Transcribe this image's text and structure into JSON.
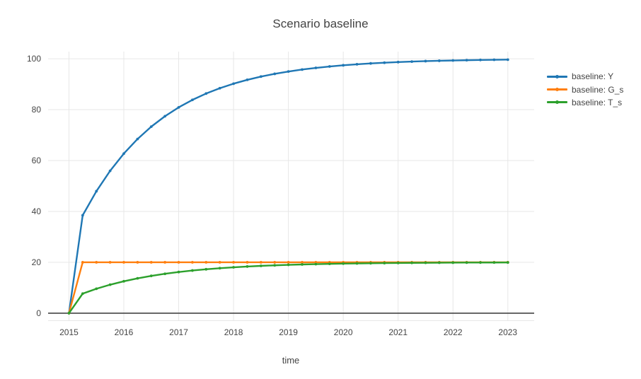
{
  "title": "Scenario baseline",
  "chart_data": {
    "type": "line",
    "mode": "lines+markers",
    "title": "Scenario baseline",
    "xlabel": "time",
    "ylabel": "",
    "grid": true,
    "legend_position": "right",
    "x_range": [
      2014.62,
      2023.48
    ],
    "y_range": [
      -2.8,
      102.8
    ],
    "xticks": [
      2015,
      2016,
      2017,
      2018,
      2019,
      2020,
      2021,
      2022,
      2023
    ],
    "xtick_labels": [
      "2015",
      "2016",
      "2017",
      "2018",
      "2019",
      "2020",
      "2021",
      "2022",
      "2023"
    ],
    "yticks": [
      0,
      20,
      40,
      60,
      80,
      100
    ],
    "ytick_labels": [
      "0",
      "20",
      "40",
      "60",
      "80",
      "100"
    ],
    "x": [
      2015,
      2015.25,
      2015.5,
      2015.75,
      2016,
      2016.25,
      2016.5,
      2016.75,
      2017,
      2017.25,
      2017.5,
      2017.75,
      2018,
      2018.25,
      2018.5,
      2018.75,
      2019,
      2019.25,
      2019.5,
      2019.75,
      2020,
      2020.25,
      2020.5,
      2020.75,
      2021,
      2021.25,
      2021.5,
      2021.75,
      2022,
      2022.25,
      2022.5,
      2022.75,
      2023
    ],
    "series": [
      {
        "name": "baseline: Y",
        "color": "#1f77b4",
        "values": [
          0,
          38.46,
          47.93,
          55.94,
          62.72,
          68.45,
          73.31,
          77.41,
          80.89,
          83.83,
          86.32,
          88.42,
          90.2,
          91.71,
          92.99,
          94.06,
          94.98,
          95.75,
          96.4,
          96.96,
          97.43,
          97.82,
          98.16,
          98.44,
          98.68,
          98.88,
          99.06,
          99.2,
          99.32,
          99.43,
          99.52,
          99.59,
          99.65
        ]
      },
      {
        "name": "baseline: G_s",
        "color": "#ff7f0e",
        "values": [
          0,
          20,
          20,
          20,
          20,
          20,
          20,
          20,
          20,
          20,
          20,
          20,
          20,
          20,
          20,
          20,
          20,
          20,
          20,
          20,
          20,
          20,
          20,
          20,
          20,
          20,
          20,
          20,
          20,
          20,
          20,
          20,
          20
        ]
      },
      {
        "name": "baseline: T_s",
        "color": "#2ca02c",
        "values": [
          0,
          7.69,
          9.59,
          11.19,
          12.54,
          13.69,
          14.66,
          15.48,
          16.18,
          16.77,
          17.26,
          17.68,
          18.04,
          18.34,
          18.6,
          18.81,
          19,
          19.15,
          19.28,
          19.39,
          19.49,
          19.56,
          19.63,
          19.69,
          19.74,
          19.78,
          19.81,
          19.84,
          19.86,
          19.89,
          19.9,
          19.92,
          19.93
        ]
      }
    ]
  },
  "colors": {
    "background": "#ffffff",
    "grid": "#e7e7e7",
    "zero_line": "#444444",
    "text": "#444444"
  }
}
